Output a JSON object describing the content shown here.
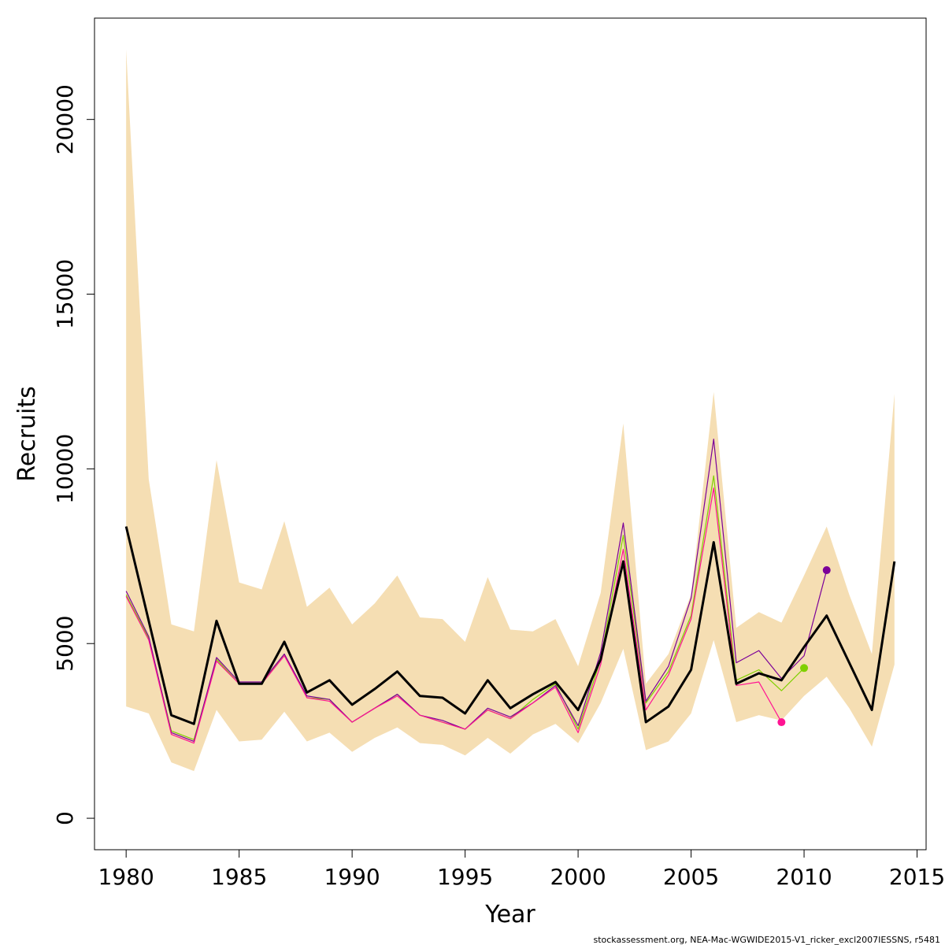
{
  "chart_data": {
    "type": "line",
    "xlabel": "Year",
    "ylabel": "Recruits",
    "xlim": [
      1978.6,
      2015.4
    ],
    "ylim": [
      -900,
      22900
    ],
    "x_ticks": [
      1980,
      1985,
      1990,
      1995,
      2000,
      2005,
      2010,
      2015
    ],
    "y_ticks": [
      0,
      5000,
      10000,
      15000,
      20000
    ],
    "grid": false,
    "legend": "none",
    "caption": "stockassessment.org, NEA-Mac-WGWIDE2015-V1_ricker_excl2007IESSNS, r5481",
    "band": {
      "color": "#F5DEB3",
      "x": [
        1980,
        1981,
        1982,
        1983,
        1984,
        1985,
        1986,
        1987,
        1988,
        1989,
        1990,
        1991,
        1992,
        1993,
        1994,
        1995,
        1996,
        1997,
        1998,
        1999,
        2000,
        2001,
        2002,
        2003,
        2004,
        2005,
        2006,
        2007,
        2008,
        2009,
        2010,
        2011,
        2012,
        2013,
        2014
      ],
      "upper": [
        22000,
        9700,
        5550,
        5350,
        10250,
        6750,
        6550,
        8500,
        6050,
        6600,
        5550,
        6150,
        6950,
        5750,
        5700,
        5050,
        6900,
        5400,
        5350,
        5700,
        4350,
        6450,
        11300,
        3850,
        4700,
        6400,
        12200,
        5450,
        5900,
        5600,
        6950,
        8350,
        6400,
        4700,
        12150
      ],
      "lower": [
        3200,
        3000,
        1600,
        1350,
        3100,
        2200,
        2250,
        3050,
        2200,
        2450,
        1900,
        2300,
        2600,
        2150,
        2100,
        1800,
        2300,
        1850,
        2400,
        2700,
        2150,
        3300,
        4850,
        1950,
        2200,
        3000,
        5100,
        2750,
        2950,
        2800,
        3500,
        4050,
        3150,
        2050,
        4400
      ]
    },
    "series": [
      {
        "color": "#000000",
        "x": [
          1980,
          1981,
          1982,
          1983,
          1984,
          1985,
          1986,
          1987,
          1988,
          1989,
          1990,
          1991,
          1992,
          1993,
          1994,
          1995,
          1996,
          1997,
          1998,
          1999,
          2000,
          2001,
          2002,
          2003,
          2004,
          2005,
          2006,
          2007,
          2008,
          2009,
          2010,
          2011,
          2012,
          2013,
          2014
        ],
        "values": [
          8350,
          5650,
          2950,
          2700,
          5650,
          3850,
          3850,
          5050,
          3600,
          3950,
          3250,
          3700,
          4200,
          3500,
          3450,
          3000,
          3950,
          3150,
          3550,
          3900,
          3100,
          4550,
          7350,
          2750,
          3200,
          4250,
          7900,
          3850,
          4150,
          3950,
          4900,
          5800,
          4450,
          3100,
          7350
        ]
      },
      {
        "color": "#7FD000",
        "x": [
          1980,
          1981,
          1982,
          1983,
          1984,
          1985,
          1986,
          1987,
          1988,
          1989,
          1990,
          1991,
          1992,
          1993,
          1994,
          1995,
          1996,
          1997,
          1998,
          1999,
          2000,
          2001,
          2002,
          2003,
          2004,
          2005,
          2006,
          2007,
          2008,
          2009,
          2010
        ],
        "values": [
          6400,
          5150,
          2500,
          2250,
          4550,
          3850,
          3850,
          4700,
          3450,
          3400,
          2750,
          3150,
          3550,
          2950,
          2750,
          2550,
          3100,
          2850,
          3400,
          3850,
          2550,
          4550,
          8100,
          3300,
          4200,
          5800,
          9800,
          3950,
          4250,
          3650,
          4300
        ]
      },
      {
        "color": "#7B0099",
        "x": [
          1980,
          1981,
          1982,
          1983,
          1984,
          1985,
          1986,
          1987,
          1988,
          1989,
          1990,
          1991,
          1992,
          1993,
          1994,
          1995,
          1996,
          1997,
          1998,
          1999,
          2000,
          2001,
          2002,
          2003,
          2004,
          2005,
          2006,
          2007,
          2008,
          2009,
          2010,
          2011
        ],
        "values": [
          6500,
          5200,
          2450,
          2200,
          4600,
          3900,
          3900,
          4700,
          3500,
          3400,
          2750,
          3150,
          3550,
          2950,
          2800,
          2550,
          3150,
          2900,
          3300,
          3800,
          2650,
          4750,
          8450,
          3350,
          4350,
          6300,
          10850,
          4450,
          4800,
          4000,
          4650,
          7100
        ]
      },
      {
        "color": "#FF1493",
        "x": [
          1980,
          1981,
          1982,
          1983,
          1984,
          1985,
          1986,
          1987,
          1988,
          1989,
          1990,
          1991,
          1992,
          1993,
          1994,
          1995,
          1996,
          1997,
          1998,
          1999,
          2000,
          2001,
          2002,
          2003,
          2004,
          2005,
          2006,
          2007,
          2008,
          2009
        ],
        "values": [
          6350,
          5100,
          2400,
          2150,
          4500,
          3850,
          3850,
          4650,
          3450,
          3350,
          2750,
          3150,
          3500,
          2950,
          2750,
          2550,
          3100,
          2850,
          3300,
          3750,
          2450,
          4400,
          7700,
          3100,
          4100,
          5700,
          9450,
          3800,
          3900,
          2750
        ]
      }
    ]
  }
}
